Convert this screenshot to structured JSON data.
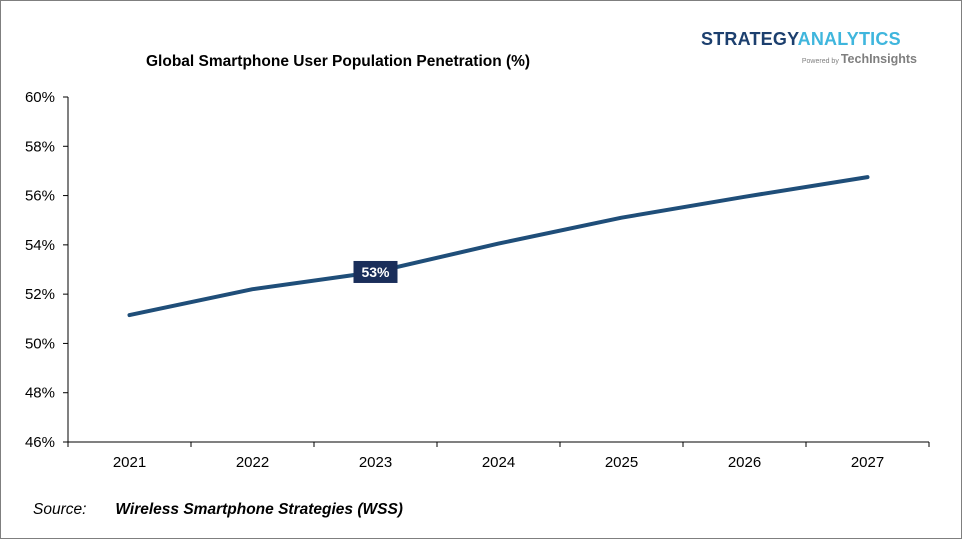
{
  "header": {
    "title": "Global Smartphone User Population Penetration (%)"
  },
  "logo": {
    "strategy": "STRATEGY",
    "analytics": "ANALYTICS",
    "powered_by": "Powered by",
    "techinsights": "TechInsights"
  },
  "footer": {
    "source_label": "Source:",
    "source_name": "Wireless Smartphone Strategies (WSS)"
  },
  "colors": {
    "line": "#1f4e79",
    "label_bg": "#1a2e5a",
    "axis": "#000000"
  },
  "chart_data": {
    "type": "line",
    "title": "Global Smartphone User Population Penetration (%)",
    "xlabel": "",
    "ylabel": "",
    "categories": [
      "2021",
      "2022",
      "2023",
      "2024",
      "2025",
      "2026",
      "2027"
    ],
    "series": [
      {
        "values": [
          51.15,
          52.2,
          52.9,
          54.05,
          55.1,
          55.95,
          56.75
        ]
      }
    ],
    "ylim": [
      46,
      60
    ],
    "yticks": [
      46,
      48,
      50,
      52,
      54,
      56,
      58,
      60
    ],
    "ytick_labels": [
      "46%",
      "48%",
      "50%",
      "52%",
      "54%",
      "56%",
      "58%",
      "60%"
    ],
    "grid": false,
    "legend": "none",
    "annotations": [
      {
        "category": "2023",
        "text": "53%"
      }
    ]
  }
}
